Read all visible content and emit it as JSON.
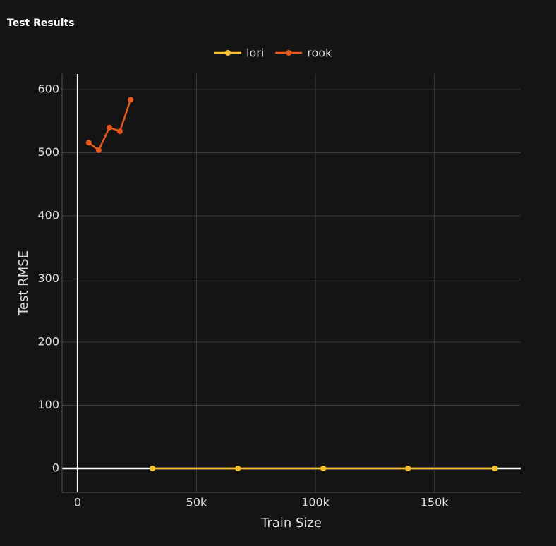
{
  "chart_data": {
    "type": "line",
    "title": "Test Results",
    "x_label": "Train Size",
    "y_label": "Test RMSE",
    "series": [
      {
        "name": "lori",
        "color": "#f5c02c",
        "x": [
          31500,
          67400,
          103300,
          138900,
          175400
        ],
        "values": [
          0,
          0,
          0,
          0,
          0
        ]
      },
      {
        "name": "rook",
        "color": "#e8581a",
        "x": [
          4700,
          8900,
          13400,
          17800,
          22300
        ],
        "values": [
          516,
          504,
          540,
          534,
          584
        ]
      }
    ],
    "xlim": [
      -6500,
      186300
    ],
    "xticks": [
      0,
      {
        "value": 50000,
        "label": "50k"
      },
      {
        "value": 100000,
        "label": "100k"
      },
      {
        "value": 150000,
        "label": "150k"
      }
    ],
    "ylim": [
      -38,
      624.6
    ],
    "yticks": [
      0,
      100,
      200,
      300,
      400,
      500,
      600
    ],
    "grid": true
  }
}
